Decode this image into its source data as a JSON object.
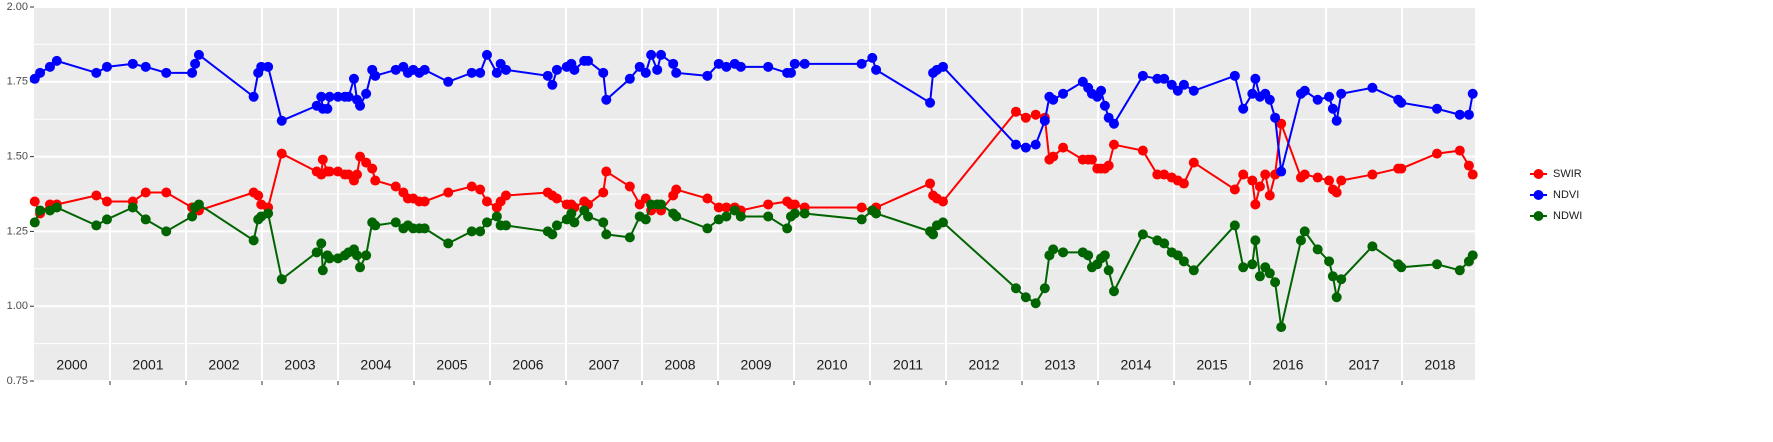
{
  "chart_data": {
    "type": "line",
    "x": [
      2000.01,
      2000.08,
      2000.21,
      2000.3,
      2000.82,
      2000.96,
      2001.3,
      2001.47,
      2001.74,
      2002.08,
      2002.12,
      2002.17,
      2002.89,
      2002.95,
      2002.99,
      2003.08,
      2003.26,
      2003.72,
      2003.78,
      2003.8,
      2003.86,
      2003.89,
      2004.0,
      2004.09,
      2004.14,
      2004.21,
      2004.25,
      2004.29,
      2004.37,
      2004.45,
      2004.49,
      2004.76,
      2004.86,
      2004.92,
      2004.99,
      2005.07,
      2005.14,
      2005.45,
      2005.76,
      2005.87,
      2005.96,
      2006.09,
      2006.14,
      2006.21,
      2006.76,
      2006.82,
      2006.88,
      2007.01,
      2007.07,
      2007.11,
      2007.24,
      2007.29,
      2007.49,
      2007.53,
      2007.84,
      2007.97,
      2008.05,
      2008.12,
      2008.2,
      2008.25,
      2008.41,
      2008.45,
      2008.86,
      2009.01,
      2009.11,
      2009.22,
      2009.3,
      2009.66,
      2009.91,
      2009.96,
      2010.01,
      2010.14,
      2010.89,
      2011.03,
      2011.08,
      2011.79,
      2011.83,
      2011.88,
      2011.96,
      2012.92,
      2013.05,
      2013.18,
      2013.3,
      2013.36,
      2013.41,
      2013.54,
      2013.8,
      2013.87,
      2013.92,
      2013.99,
      2014.04,
      2014.09,
      2014.14,
      2014.21,
      2014.59,
      2014.78,
      2014.87,
      2014.97,
      2015.05,
      2015.13,
      2015.26,
      2015.8,
      2015.91,
      2016.03,
      2016.07,
      2016.13,
      2016.2,
      2016.26,
      2016.33,
      2016.41,
      2016.67,
      2016.72,
      2016.89,
      2017.04,
      2017.09,
      2017.14,
      2017.2,
      2017.61,
      2017.95,
      2017.99,
      2018.46,
      2018.76,
      2018.88,
      2018.93
    ],
    "series": [
      {
        "name": "SWIR",
        "color": "#ff0000",
        "values": [
          1.35,
          1.31,
          1.34,
          1.34,
          1.37,
          1.35,
          1.35,
          1.38,
          1.38,
          1.33,
          1.33,
          1.32,
          1.38,
          1.37,
          1.34,
          1.33,
          1.51,
          1.45,
          1.44,
          1.49,
          1.45,
          1.45,
          1.45,
          1.44,
          1.44,
          1.42,
          1.44,
          1.5,
          1.48,
          1.46,
          1.42,
          1.4,
          1.38,
          1.36,
          1.36,
          1.35,
          1.35,
          1.38,
          1.4,
          1.39,
          1.35,
          1.33,
          1.35,
          1.37,
          1.38,
          1.37,
          1.36,
          1.34,
          1.34,
          1.33,
          1.35,
          1.34,
          1.38,
          1.45,
          1.4,
          1.34,
          1.36,
          1.32,
          1.34,
          1.32,
          1.37,
          1.39,
          1.36,
          1.33,
          1.33,
          1.33,
          1.32,
          1.34,
          1.35,
          1.34,
          1.34,
          1.33,
          1.33,
          1.32,
          1.33,
          1.41,
          1.37,
          1.36,
          1.35,
          1.65,
          1.63,
          1.64,
          1.63,
          1.49,
          1.5,
          1.53,
          1.49,
          1.49,
          1.49,
          1.46,
          1.46,
          1.46,
          1.47,
          1.54,
          1.52,
          1.44,
          1.44,
          1.43,
          1.42,
          1.41,
          1.48,
          1.39,
          1.44,
          1.42,
          1.34,
          1.4,
          1.44,
          1.37,
          1.44,
          1.61,
          1.43,
          1.44,
          1.43,
          1.42,
          1.39,
          1.38,
          1.42,
          1.44,
          1.46,
          1.46,
          1.51,
          1.52,
          1.47,
          1.44
        ]
      },
      {
        "name": "NDVI",
        "color": "#0000ff",
        "values": [
          1.76,
          1.78,
          1.8,
          1.82,
          1.78,
          1.8,
          1.81,
          1.8,
          1.78,
          1.78,
          1.81,
          1.84,
          1.7,
          1.78,
          1.8,
          1.8,
          1.62,
          1.67,
          1.7,
          1.66,
          1.66,
          1.7,
          1.7,
          1.7,
          1.7,
          1.76,
          1.69,
          1.67,
          1.71,
          1.79,
          1.77,
          1.79,
          1.8,
          1.78,
          1.79,
          1.78,
          1.79,
          1.75,
          1.78,
          1.78,
          1.84,
          1.78,
          1.81,
          1.79,
          1.77,
          1.74,
          1.79,
          1.8,
          1.81,
          1.79,
          1.82,
          1.82,
          1.78,
          1.69,
          1.76,
          1.8,
          1.78,
          1.84,
          1.79,
          1.84,
          1.81,
          1.78,
          1.77,
          1.81,
          1.8,
          1.81,
          1.8,
          1.8,
          1.78,
          1.78,
          1.81,
          1.81,
          1.81,
          1.83,
          1.79,
          1.68,
          1.78,
          1.79,
          1.8,
          1.54,
          1.53,
          1.54,
          1.62,
          1.7,
          1.69,
          1.71,
          1.75,
          1.73,
          1.71,
          1.7,
          1.72,
          1.67,
          1.63,
          1.61,
          1.77,
          1.76,
          1.76,
          1.74,
          1.72,
          1.74,
          1.72,
          1.77,
          1.66,
          1.71,
          1.76,
          1.7,
          1.71,
          1.69,
          1.63,
          1.45,
          1.71,
          1.72,
          1.69,
          1.7,
          1.66,
          1.62,
          1.71,
          1.73,
          1.69,
          1.68,
          1.66,
          1.64,
          1.64,
          1.71
        ]
      },
      {
        "name": "NDWI",
        "color": "#006400",
        "values": [
          1.28,
          1.32,
          1.32,
          1.33,
          1.27,
          1.29,
          1.33,
          1.29,
          1.25,
          1.3,
          1.33,
          1.34,
          1.22,
          1.29,
          1.3,
          1.31,
          1.09,
          1.18,
          1.21,
          1.12,
          1.17,
          1.16,
          1.16,
          1.17,
          1.18,
          1.19,
          1.17,
          1.13,
          1.17,
          1.28,
          1.27,
          1.28,
          1.26,
          1.27,
          1.26,
          1.26,
          1.26,
          1.21,
          1.25,
          1.25,
          1.28,
          1.3,
          1.27,
          1.27,
          1.25,
          1.24,
          1.27,
          1.29,
          1.31,
          1.28,
          1.32,
          1.3,
          1.28,
          1.24,
          1.23,
          1.3,
          1.29,
          1.34,
          1.34,
          1.34,
          1.31,
          1.3,
          1.26,
          1.29,
          1.3,
          1.32,
          1.3,
          1.3,
          1.26,
          1.3,
          1.31,
          1.31,
          1.29,
          1.32,
          1.31,
          1.25,
          1.24,
          1.27,
          1.28,
          1.06,
          1.03,
          1.01,
          1.06,
          1.17,
          1.19,
          1.18,
          1.18,
          1.17,
          1.13,
          1.14,
          1.16,
          1.17,
          1.12,
          1.05,
          1.24,
          1.22,
          1.21,
          1.18,
          1.17,
          1.15,
          1.12,
          1.27,
          1.13,
          1.14,
          1.22,
          1.1,
          1.13,
          1.11,
          1.08,
          0.93,
          1.22,
          1.25,
          1.19,
          1.15,
          1.1,
          1.03,
          1.09,
          1.2,
          1.14,
          1.13,
          1.14,
          1.12,
          1.15,
          1.17
        ]
      }
    ],
    "year_labels": [
      "2000",
      "2001",
      "2002",
      "2003",
      "2004",
      "2005",
      "2006",
      "2007",
      "2008",
      "2009",
      "2010",
      "2011",
      "2012",
      "2013",
      "2014",
      "2015",
      "2016",
      "2017",
      "2018"
    ],
    "xlim": [
      2000,
      2018.96
    ],
    "xticks": [
      2001,
      2002,
      2003,
      2004,
      2005,
      2006,
      2007,
      2008,
      2009,
      2010,
      2011,
      2012,
      2013,
      2014,
      2015,
      2016,
      2017,
      2018
    ],
    "ylim": [
      0.75,
      2.0
    ],
    "yticks": [
      0.75,
      {
        "value": 1,
        "label": "1.00"
      },
      1.25,
      {
        "value": 1.5,
        "label": "1.50"
      },
      1.75,
      {
        "value": 2,
        "label": "2.00"
      }
    ],
    "yminor_ticks": [
      0.875,
      1.125,
      1.375,
      1.625,
      1.875
    ],
    "grid": true,
    "legend": "right"
  }
}
